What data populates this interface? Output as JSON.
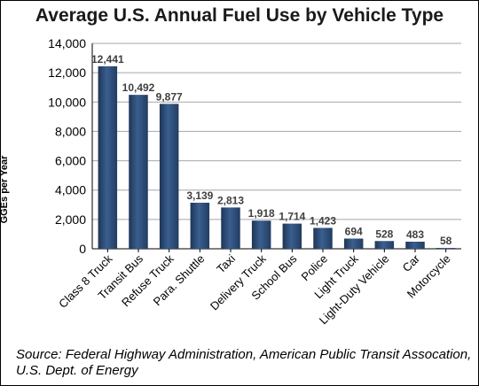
{
  "chart_data": {
    "type": "bar",
    "title": "Average U.S. Annual Fuel Use by Vehicle Type",
    "ylabel": "GGEs per Year",
    "xlabel": "",
    "categories": [
      "Class 8 Truck",
      "Transit Bus",
      "Refuse Truck",
      "Para. Shuttle",
      "Taxi",
      "Delivery Truck",
      "School Bus",
      "Police",
      "Light Truck",
      "Light-Duty Vehicle",
      "Car",
      "Motorcycle"
    ],
    "values": [
      12441,
      10492,
      9877,
      3139,
      2813,
      1918,
      1714,
      1423,
      694,
      528,
      483,
      58
    ],
    "value_labels": [
      "12,441",
      "10,492",
      "9,877",
      "3,139",
      "2,813",
      "1,918",
      "1,714",
      "1,423",
      "694",
      "528",
      "483",
      "58"
    ],
    "ylim": [
      0,
      14000
    ],
    "yticks": [
      0,
      2000,
      4000,
      6000,
      8000,
      10000,
      12000,
      14000
    ],
    "ytick_labels": [
      "0",
      "2,000",
      "4,000",
      "6,000",
      "8,000",
      "10,000",
      "12,000",
      "14,000"
    ],
    "grid": true,
    "legend": "none",
    "bar_color": "#2d4b74"
  },
  "source": "Source: Federal Highway Administration, American Public Transit Assocation, U.S. Dept. of Energy"
}
